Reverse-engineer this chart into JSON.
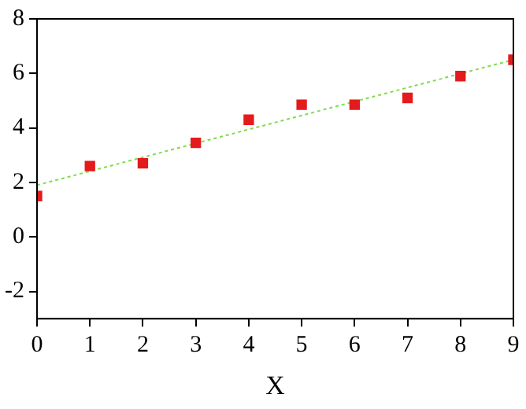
{
  "chart_data": {
    "type": "scatter",
    "xlabel": "X",
    "x": [
      0,
      1,
      2,
      3,
      4,
      5,
      6,
      7,
      8,
      9
    ],
    "series": [
      {
        "color": "#e41a1c",
        "marker": "square",
        "values": [
          1.5,
          2.6,
          2.7,
          3.45,
          4.3,
          4.85,
          4.85,
          5.1,
          5.9,
          6.5
        ]
      },
      {
        "type": "line",
        "color": "#7fdc4a",
        "line_style": "dotted",
        "marker": "none",
        "x": [
          0,
          9
        ],
        "values": [
          1.9,
          6.5
        ]
      }
    ],
    "xlim": [
      0,
      9
    ],
    "xticks": [
      0,
      1,
      2,
      3,
      4,
      5,
      6,
      7,
      8,
      9
    ],
    "ylim": [
      -3,
      8
    ],
    "yticks": [
      -2,
      0,
      2,
      4,
      6,
      8
    ],
    "grid": false,
    "legend": false
  }
}
